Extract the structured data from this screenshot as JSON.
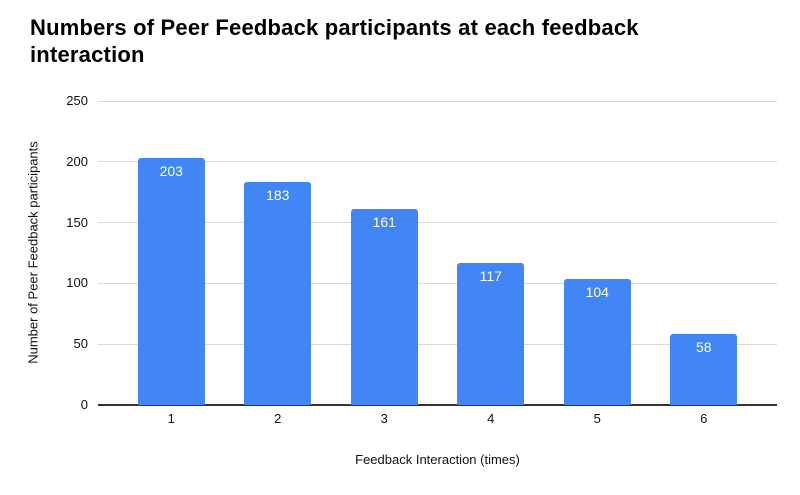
{
  "header": {
    "title_line1": "Numbers of Peer Feedback participants at each feedback",
    "title_line2": "interaction"
  },
  "chart_data": {
    "type": "bar",
    "title": "Numbers of Peer Feedback participants at each feedback interaction",
    "categories": [
      "1",
      "2",
      "3",
      "4",
      "5",
      "6"
    ],
    "values": [
      203,
      183,
      161,
      117,
      104,
      58
    ],
    "xlabel": "Feedback Interaction (times)",
    "ylabel": "Number of Peer Feedback participants",
    "ylim": [
      0,
      250
    ],
    "yticks": [
      0,
      50,
      100,
      150,
      200,
      250
    ],
    "grid": "on",
    "legend": "none",
    "bar_color": "#4285f4",
    "value_label_color": "#ffffff",
    "gridline_color": "#d9d9d9",
    "axis_line_color": "#333333"
  }
}
